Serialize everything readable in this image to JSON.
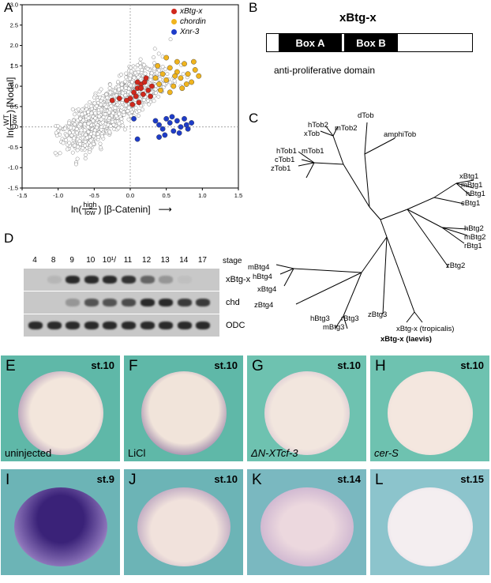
{
  "panel_letters": {
    "A": "A",
    "B": "B",
    "C": "C",
    "D": "D",
    "E": "E",
    "F": "F",
    "G": "G",
    "H": "H",
    "I": "I",
    "J": "J",
    "K": "K",
    "L": "L"
  },
  "scatter": {
    "ylabel_prefix": "ln(",
    "ylabel_num": "WT",
    "ylabel_den": "low",
    "ylabel_suffix": ") [Nodal]",
    "xlabel_prefix": "ln(",
    "xlabel_num": "high",
    "xlabel_den": "low",
    "xlabel_suffix": ") [β-Catenin]",
    "xticks": [
      "-1.5",
      "-1.0",
      "-0.5",
      "0.0",
      "0.5",
      "1.0",
      "1.5"
    ],
    "yticks": [
      "3.0",
      "2.5",
      "2.0",
      "1.5",
      "1.0",
      "0.5",
      "0.0",
      "-0.5",
      "-1.0",
      "-1.5"
    ],
    "legend": [
      {
        "name": "xBtg-x",
        "color": "#d0281c"
      },
      {
        "name": "chordin",
        "color": "#f0b41e"
      },
      {
        "name": "Xnr-3",
        "color": "#1e3cc8"
      }
    ]
  },
  "chart_data": {
    "type": "scatter",
    "xlim": [
      -1.5,
      1.5
    ],
    "ylim": [
      -1.5,
      3.0
    ],
    "series": [
      {
        "name": "xBtg-x",
        "color": "#d0281c",
        "points": [
          [
            0.0,
            0.7
          ],
          [
            0.05,
            0.85
          ],
          [
            0.1,
            0.95
          ],
          [
            0.15,
            1.05
          ],
          [
            0.2,
            1.1
          ],
          [
            0.08,
            0.75
          ],
          [
            0.12,
            0.6
          ],
          [
            0.18,
            0.8
          ],
          [
            0.25,
            0.9
          ],
          [
            0.03,
            0.55
          ],
          [
            -0.05,
            0.65
          ],
          [
            -0.15,
            0.7
          ],
          [
            -0.25,
            0.65
          ],
          [
            0.3,
            1.0
          ],
          [
            0.22,
            1.2
          ],
          [
            0.15,
            0.95
          ],
          [
            0.1,
            1.1
          ],
          [
            0.28,
            0.75
          ]
        ]
      },
      {
        "name": "chordin",
        "color": "#f0b41e",
        "points": [
          [
            0.35,
            1.2
          ],
          [
            0.4,
            1.05
          ],
          [
            0.45,
            1.3
          ],
          [
            0.5,
            1.15
          ],
          [
            0.55,
            1.45
          ],
          [
            0.6,
            1.0
          ],
          [
            0.65,
            1.35
          ],
          [
            0.7,
            1.2
          ],
          [
            0.75,
            1.55
          ],
          [
            0.8,
            1.3
          ],
          [
            0.85,
            1.1
          ],
          [
            0.9,
            1.4
          ],
          [
            0.95,
            1.25
          ],
          [
            0.5,
            1.7
          ],
          [
            0.65,
            1.6
          ],
          [
            0.42,
            0.9
          ],
          [
            0.55,
            0.85
          ],
          [
            0.72,
            0.95
          ],
          [
            0.88,
            1.6
          ],
          [
            0.38,
            1.5
          ],
          [
            0.62,
            1.25
          ],
          [
            0.78,
            1.05
          ]
        ]
      },
      {
        "name": "Xnr-3",
        "color": "#1e3cc8",
        "points": [
          [
            0.05,
            0.2
          ],
          [
            0.35,
            0.15
          ],
          [
            0.4,
            0.05
          ],
          [
            0.45,
            -0.05
          ],
          [
            0.5,
            0.2
          ],
          [
            0.55,
            0.1
          ],
          [
            0.6,
            -0.1
          ],
          [
            0.65,
            0.15
          ],
          [
            0.7,
            0.0
          ],
          [
            0.75,
            0.2
          ],
          [
            0.8,
            -0.05
          ],
          [
            0.85,
            0.1
          ],
          [
            0.48,
            -0.2
          ],
          [
            0.58,
            0.25
          ],
          [
            0.68,
            -0.15
          ],
          [
            0.78,
            0.05
          ],
          [
            0.4,
            -0.25
          ],
          [
            0.1,
            -0.3
          ]
        ]
      }
    ]
  },
  "panelB": {
    "title": "xBtg-x",
    "boxA": "Box A",
    "boxB": "Box B",
    "domain_label": "anti-proliferative domain"
  },
  "tree": {
    "leaves": [
      "dTob",
      "amphiTob",
      "hTob2",
      "xTob",
      "mTob2",
      "hTob1",
      "cTob1",
      "mTob1",
      "zTob1",
      "xBtg1",
      "mBtg1",
      "hBtg1",
      "cBtg1",
      "hBtg2",
      "mBtg2",
      "rBtg1",
      "zBtg2",
      "mBtg4",
      "hBtg4",
      "xBtg4",
      "zBtg4",
      "hBtg3",
      "rBtg3",
      "mBtg3",
      "zBtg3",
      "xBtg-x (tropicalis)",
      "xBtg-x (laevis)"
    ]
  },
  "blot": {
    "stages": [
      "4",
      "8",
      "9",
      "10",
      "10¹/₂",
      "11",
      "12",
      "13",
      "14",
      "17"
    ],
    "stage_word": "stage",
    "rows": [
      {
        "label": "xBtg-x",
        "levels": [
          0,
          0.1,
          1,
          1,
          1,
          0.9,
          0.6,
          0.3,
          0.05,
          0
        ]
      },
      {
        "label": "chd",
        "levels": [
          0,
          0,
          0.3,
          0.7,
          0.7,
          0.75,
          0.95,
          0.95,
          0.85,
          0.85
        ]
      },
      {
        "label": "ODC",
        "levels": [
          1,
          1,
          1,
          1,
          1,
          1,
          1,
          1,
          1,
          1
        ]
      }
    ]
  },
  "embryos": [
    {
      "letter": "E",
      "stage": "st.10",
      "caption": "uninjected"
    },
    {
      "letter": "F",
      "stage": "st.10",
      "caption": "LiCl"
    },
    {
      "letter": "G",
      "stage": "st.10",
      "caption": "ΔN-XTcf-3"
    },
    {
      "letter": "H",
      "stage": "st.10",
      "caption": "cer-S"
    },
    {
      "letter": "I",
      "stage": "st.9",
      "caption": ""
    },
    {
      "letter": "J",
      "stage": "st.10",
      "caption": ""
    },
    {
      "letter": "K",
      "stage": "st.14",
      "caption": ""
    },
    {
      "letter": "L",
      "stage": "st.15",
      "caption": ""
    }
  ]
}
